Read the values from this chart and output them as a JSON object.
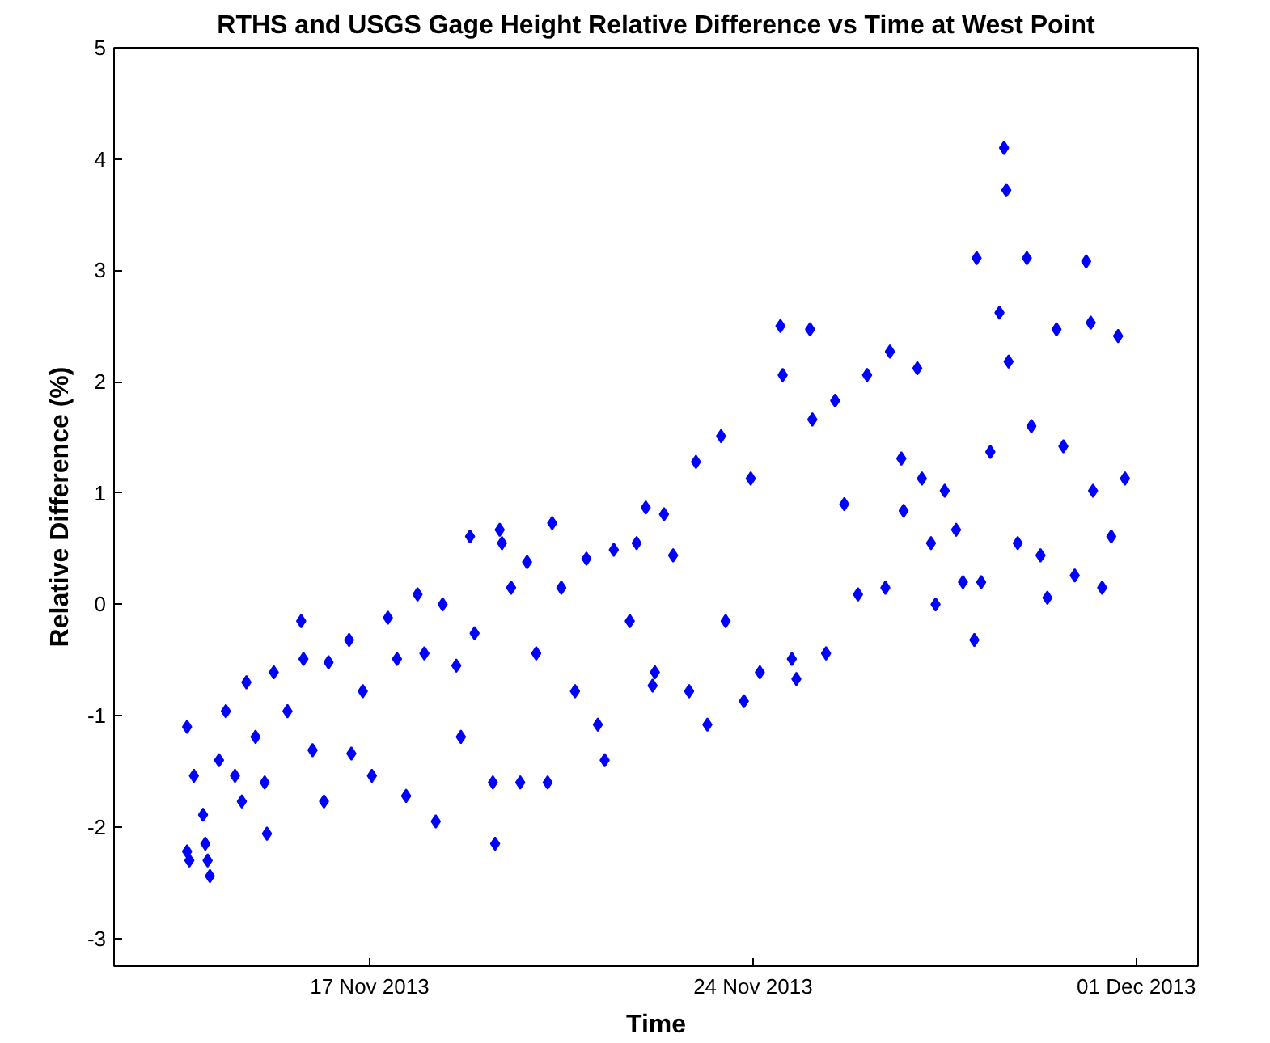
{
  "chart_data": {
    "type": "scatter",
    "title": "RTHS and USGS Gage Height Relative Difference vs Time at West Point",
    "xlabel": "Time",
    "ylabel": "Relative Difference (%)",
    "xlim": [
      "2013-11-12T08:00",
      "2013-12-02T03:00"
    ],
    "xticks": [
      {
        "value": "2013-11-17",
        "label": "17 Nov 2013"
      },
      {
        "value": "2013-11-24",
        "label": "24 Nov 2013"
      },
      {
        "value": "2013-12-01",
        "label": "01 Dec 2013"
      }
    ],
    "ylim": [
      -3.25,
      5
    ],
    "yticks": [
      -3,
      -2,
      -1,
      0,
      1,
      2,
      3,
      4,
      5
    ],
    "grid": false,
    "marker": "diamond",
    "series": [
      {
        "color": "#0000ff",
        "x": [
          "2013-11-13T16:00",
          "2013-11-13T16:00",
          "2013-11-13T17:00",
          "2013-11-13T19:00",
          "2013-11-13T23:00",
          "2013-11-14T00:00",
          "2013-11-14T01:00",
          "2013-11-14T02:00",
          "2013-11-14T06:00",
          "2013-11-14T09:00",
          "2013-11-14T13:00",
          "2013-11-14T16:00",
          "2013-11-14T18:00",
          "2013-11-14T22:00",
          "2013-11-15T02:00",
          "2013-11-15T03:00",
          "2013-11-15T06:00",
          "2013-11-15T12:00",
          "2013-11-15T18:00",
          "2013-11-15T19:00",
          "2013-11-15T23:00",
          "2013-11-16T04:00",
          "2013-11-16T06:00",
          "2013-11-16T15:00",
          "2013-11-16T16:00",
          "2013-11-16T21:00",
          "2013-11-17T01:00",
          "2013-11-17T08:00",
          "2013-11-17T12:00",
          "2013-11-17T16:00",
          "2013-11-17T21:00",
          "2013-11-18T00:00",
          "2013-11-18T05:00",
          "2013-11-18T08:00",
          "2013-11-18T14:00",
          "2013-11-18T16:00",
          "2013-11-18T20:00",
          "2013-11-18T22:00",
          "2013-11-19T06:00",
          "2013-11-19T07:00",
          "2013-11-19T09:00",
          "2013-11-19T10:00",
          "2013-11-19T14:00",
          "2013-11-19T18:00",
          "2013-11-19T21:00",
          "2013-11-20T01:00",
          "2013-11-20T06:00",
          "2013-11-20T08:00",
          "2013-11-20T12:00",
          "2013-11-20T18:00",
          "2013-11-20T23:00",
          "2013-11-21T04:00",
          "2013-11-21T07:00",
          "2013-11-21T11:00",
          "2013-11-21T18:00",
          "2013-11-21T21:00",
          "2013-11-22T01:00",
          "2013-11-22T05:00",
          "2013-11-22T09:00",
          "2013-11-22T13:00",
          "2013-11-22T04:00",
          "2013-11-22T20:00",
          "2013-11-22T23:00",
          "2013-11-23T04:00",
          "2013-11-23T10:00",
          "2013-11-23T12:00",
          "2013-11-23T20:00",
          "2013-11-23T23:00",
          "2013-11-24T03:00",
          "2013-11-24T12:00",
          "2013-11-24T13:00",
          "2013-11-24T17:00",
          "2013-11-24T19:00",
          "2013-11-25T01:00",
          "2013-11-25T02:00",
          "2013-11-25T08:00",
          "2013-11-25T12:00",
          "2013-11-25T16:00",
          "2013-11-25T22:00",
          "2013-11-26T02:00",
          "2013-11-26T10:00",
          "2013-11-26T12:00",
          "2013-11-26T17:00",
          "2013-11-26T18:00",
          "2013-11-27T00:00",
          "2013-11-27T02:00",
          "2013-11-27T06:00",
          "2013-11-27T08:00",
          "2013-11-27T12:00",
          "2013-11-27T17:00",
          "2013-11-27T20:00",
          "2013-11-28T01:00",
          "2013-11-28T02:00",
          "2013-11-28T04:00",
          "2013-11-28T08:00",
          "2013-11-28T12:00",
          "2013-11-28T14:00",
          "2013-11-28T15:00",
          "2013-11-28T16:00",
          "2013-11-28T20:00",
          "2013-11-29T00:00",
          "2013-11-29T02:00",
          "2013-11-29T06:00",
          "2013-11-29T09:00",
          "2013-11-29T13:00",
          "2013-11-29T16:00",
          "2013-11-29T21:00",
          "2013-11-30T02:00",
          "2013-11-30T04:00",
          "2013-11-30T05:00",
          "2013-11-30T09:00",
          "2013-11-30T13:00",
          "2013-11-30T16:00",
          "2013-11-30T19:00"
        ],
        "values": [
          -1.1,
          -2.22,
          -2.3,
          -1.54,
          -1.89,
          -2.15,
          -2.3,
          -2.44,
          -1.4,
          -0.96,
          -1.54,
          -1.77,
          -0.7,
          -1.19,
          -1.6,
          -2.06,
          -0.61,
          -0.96,
          -0.15,
          -0.49,
          -1.31,
          -1.77,
          -0.52,
          -0.32,
          -1.34,
          -0.78,
          -1.54,
          -0.12,
          -0.49,
          -1.72,
          0.09,
          -0.44,
          -1.95,
          0.0,
          -0.55,
          -1.19,
          0.61,
          -0.26,
          -1.6,
          -2.15,
          0.67,
          0.55,
          0.15,
          -1.6,
          0.38,
          -0.44,
          -1.6,
          0.73,
          0.15,
          -0.78,
          0.41,
          -1.08,
          -1.4,
          0.49,
          -0.15,
          0.55,
          0.87,
          -0.61,
          0.81,
          0.44,
          -0.73,
          -0.78,
          1.28,
          -1.08,
          1.51,
          -0.15,
          -0.87,
          1.13,
          -0.61,
          2.5,
          2.06,
          -0.49,
          -0.67,
          2.47,
          1.66,
          -0.44,
          1.83,
          0.9,
          0.09,
          2.06,
          0.15,
          2.27,
          1.31,
          0.84,
          2.12,
          1.13,
          0.55,
          0.0,
          1.02,
          0.67,
          0.2,
          -0.32,
          3.11,
          0.2,
          1.37,
          2.62,
          4.1,
          3.72,
          2.18,
          0.55,
          3.11,
          1.6,
          0.44,
          0.06,
          2.47,
          1.42,
          0.26,
          3.08,
          2.53,
          1.02,
          0.15,
          0.61,
          2.41,
          1.13
        ]
      }
    ]
  }
}
